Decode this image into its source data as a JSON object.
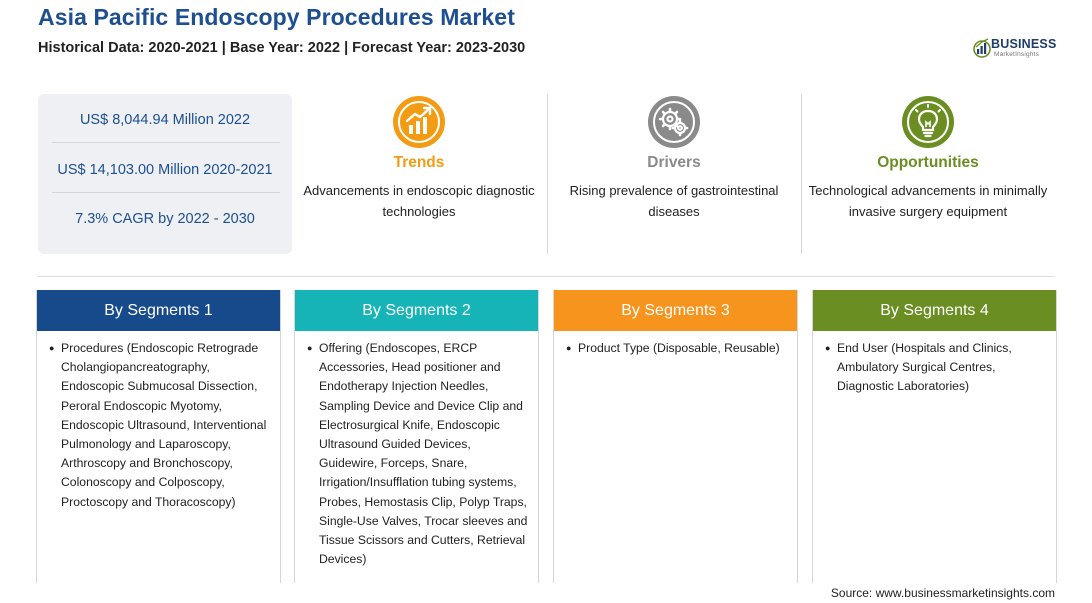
{
  "header": {
    "title": "Asia Pacific Endoscopy Procedures Market",
    "subtitle": "Historical Data: 2020-2021 | Base Year: 2022 | Forecast Year: 2023-2030"
  },
  "logo": {
    "top": "BUSINESS",
    "sub": "MarketInsights"
  },
  "stats": {
    "market_value": "US$ 8,044.94 Million 2022",
    "historical_value": "US$ 14,103.00 Million 2020-2021",
    "cagr": "7.3% CAGR by 2022 - 2030"
  },
  "features": {
    "trends": {
      "title": "Trends",
      "desc": "Advancements in endoscopic diagnostic technologies",
      "icon": "trending-chart-icon",
      "color": "#f39b12"
    },
    "drivers": {
      "title": "Drivers",
      "desc": "Rising prevalence of gastrointestinal diseases",
      "icon": "gears-icon",
      "color": "#8a8a8a"
    },
    "opportunities": {
      "title": "Opportunities",
      "desc": "Technological advancements in minimally invasive surgery equipment",
      "icon": "lightbulb-icon",
      "color": "#6b8e23"
    }
  },
  "segments": [
    {
      "title": "By Segments 1",
      "color": "#174a8b",
      "items": [
        "Procedures (Endoscopic Retrograde Cholangiopancreatography, Endoscopic Submucosal Dissection, Peroral Endoscopic Myotomy, Endoscopic Ultrasound, Interventional Pulmonology and Laparoscopy, Arthroscopy and Bronchoscopy, Colonoscopy and Colposcopy, Proctoscopy and Thoracoscopy)"
      ]
    },
    {
      "title": "By Segments 2",
      "color": "#16b3b7",
      "items": [
        "Offering (Endoscopes, ERCP Accessories, Head positioner and Endotherapy Injection Needles, Sampling Device and Device Clip and Electrosurgical Knife, Endoscopic Ultrasound Guided Devices, Guidewire, Forceps, Snare, Irrigation/Insufflation tubing systems, Probes, Hemostasis Clip, Polyp Traps, Single-Use Valves, Trocar sleeves and Tissue Scissors and Cutters, Retrieval Devices)"
      ]
    },
    {
      "title": "By Segments 3",
      "color": "#f7941d",
      "items": [
        "Product Type (Disposable, Reusable)"
      ]
    },
    {
      "title": "By Segments 4",
      "color": "#6b8e23",
      "items": [
        "End User (Hospitals and Clinics, Ambulatory Surgical Centres, Diagnostic Laboratories)"
      ]
    }
  ],
  "source": "Source: www.businessmarketinsights.com"
}
